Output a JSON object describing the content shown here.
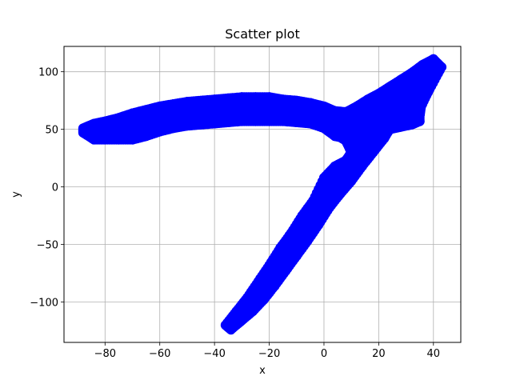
{
  "chart_data": {
    "type": "scatter",
    "title": "Scatter plot",
    "xlabel": "x",
    "ylabel": "y",
    "xlim": [
      -95,
      50
    ],
    "ylim": [
      -135,
      122
    ],
    "xticks": [
      -80,
      -60,
      -40,
      -20,
      0,
      20,
      40
    ],
    "yticks": [
      -100,
      -50,
      0,
      50,
      100
    ],
    "xtick_labels": [
      "−80",
      "−60",
      "−40",
      "−20",
      "0",
      "20",
      "40"
    ],
    "ytick_labels": [
      "−100",
      "−50",
      "0",
      "50",
      "100"
    ],
    "grid": true,
    "marker_color": "#0000ff",
    "series": [
      {
        "values_description_free": true,
        "bands": [
          {
            "points": [
              [
                -88,
                45
              ],
              [
                -84,
                47
              ],
              [
                -80,
                49
              ],
              [
                -75,
                51
              ],
              [
                -70,
                54
              ],
              [
                -65,
                58
              ],
              [
                -60,
                61
              ],
              [
                -55,
                63
              ],
              [
                -50,
                65
              ],
              [
                -45,
                66
              ],
              [
                -40,
                67
              ],
              [
                -35,
                68
              ],
              [
                -30,
                68
              ],
              [
                -25,
                68
              ],
              [
                -20,
                68
              ],
              [
                -15,
                67
              ],
              [
                -10,
                66
              ],
              [
                -5,
                64
              ],
              [
                0,
                60
              ],
              [
                4,
                56
              ],
              [
                8,
                58
              ],
              [
                12,
                63
              ],
              [
                16,
                68
              ],
              [
                20,
                74
              ],
              [
                24,
                80
              ],
              [
                28,
                86
              ],
              [
                32,
                92
              ],
              [
                36,
                98
              ],
              [
                40,
                104
              ]
            ],
            "upper": [
              [
                -88,
                51
              ],
              [
                -84,
                55
              ],
              [
                -80,
                57
              ],
              [
                -75,
                60
              ],
              [
                -70,
                64
              ],
              [
                -65,
                67
              ],
              [
                -60,
                70
              ],
              [
                -55,
                72
              ],
              [
                -50,
                74
              ],
              [
                -45,
                75
              ],
              [
                -40,
                76
              ],
              [
                -35,
                77
              ],
              [
                -30,
                78
              ],
              [
                -25,
                78
              ],
              [
                -20,
                78
              ],
              [
                -15,
                76
              ],
              [
                -10,
                75
              ],
              [
                -5,
                73
              ],
              [
                0,
                70
              ],
              [
                4,
                66
              ],
              [
                8,
                65
              ],
              [
                12,
                70
              ],
              [
                16,
                76
              ],
              [
                20,
                81
              ],
              [
                24,
                87
              ],
              [
                28,
                93
              ],
              [
                32,
                99
              ],
              [
                36,
                106
              ],
              [
                40,
                111
              ],
              [
                43,
                104
              ]
            ],
            "lower": [
              [
                -88,
                47
              ],
              [
                -84,
                41
              ],
              [
                -80,
                41
              ],
              [
                -75,
                41
              ],
              [
                -70,
                41
              ],
              [
                -65,
                44
              ],
              [
                -60,
                48
              ],
              [
                -55,
                51
              ],
              [
                -50,
                53
              ],
              [
                -45,
                54
              ],
              [
                -40,
                55
              ],
              [
                -35,
                56
              ],
              [
                -30,
                57
              ],
              [
                -25,
                57
              ],
              [
                -20,
                57
              ],
              [
                -15,
                57
              ],
              [
                -10,
                56
              ],
              [
                -5,
                55
              ],
              [
                0,
                51
              ],
              [
                4,
                44
              ],
              [
                8,
                42
              ],
              [
                12,
                44
              ],
              [
                16,
                46
              ],
              [
                20,
                48
              ],
              [
                24,
                50
              ],
              [
                28,
                52
              ],
              [
                32,
                54
              ],
              [
                35,
                57
              ],
              [
                35,
                67
              ],
              [
                38,
                82
              ],
              [
                43,
                95
              ]
            ]
          },
          {
            "upper": [
              [
                -36,
                -120
              ],
              [
                -32,
                -108
              ],
              [
                -28,
                -96
              ],
              [
                -24,
                -82
              ],
              [
                -20,
                -68
              ],
              [
                -16,
                -53
              ],
              [
                -12,
                -40
              ],
              [
                -8,
                -25
              ],
              [
                -4,
                -12
              ],
              [
                0,
                8
              ],
              [
                4,
                18
              ],
              [
                8,
                23
              ],
              [
                10,
                30
              ],
              [
                8,
                40
              ],
              [
                4,
                46
              ],
              [
                6,
                50
              ]
            ],
            "lower": [
              [
                -34,
                -124
              ],
              [
                -30,
                -116
              ],
              [
                -26,
                -108
              ],
              [
                -22,
                -98
              ],
              [
                -18,
                -86
              ],
              [
                -14,
                -73
              ],
              [
                -10,
                -60
              ],
              [
                -6,
                -47
              ],
              [
                -2,
                -33
              ],
              [
                2,
                -18
              ],
              [
                6,
                -6
              ],
              [
                10,
                5
              ],
              [
                14,
                18
              ],
              [
                18,
                30
              ],
              [
                22,
                42
              ],
              [
                24,
                50
              ]
            ]
          }
        ]
      }
    ]
  }
}
